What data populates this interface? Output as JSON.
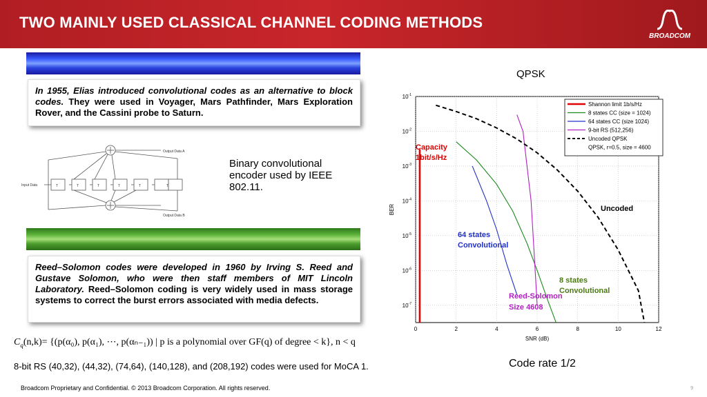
{
  "header": {
    "title": "TWO MAINLY USED CLASSICAL CHANNEL CODING METHODS",
    "logo_text": "BROADCOM"
  },
  "convolutional_box": {
    "italic_text": "In 1955, Elias introduced convolutional codes as an alternative to block codes.",
    "text": " They were used in Voyager, Mars Pathfinder, Mars Exploration Rover, and the Cassini probe to Saturn."
  },
  "encoder_diagram": {
    "output_a": "Output Data A",
    "output_b": "Output Data B",
    "input": "Input Data",
    "tap_label": "T",
    "tap_sub": "b"
  },
  "encoder_description": "Binary convolutional encoder used by IEEE 802.11.",
  "rs_box": {
    "italic_text": "Reed–Solomon codes were developed in 1960 by Irving S. Reed and Gustave Solomon, who were then staff members of MIT Lincoln Laboratory.",
    "text": " Reed–Solomon coding is very widely used in mass storage systems to correct the burst errors associated with media defects."
  },
  "formula": {
    "lhs": "C",
    "sub_q": "q",
    "args": "(n,k)",
    "body": "= {(p(α₀), p(α₁), ⋯, p(αₙ₋₁)) | p is a polynomial over GF(q) of degree < k}, n < q"
  },
  "rs_note": "8-bit RS (40,32), (44,32), (74,64), (140,128), and (208,192) codes were used for MoCA 1.",
  "qpsk_label": "QPSK",
  "code_rate": "Code rate 1/2",
  "footer": "Broadcom Proprietary and Confidential.  © 2013 Broadcom Corporation.  All rights reserved.",
  "page_number": "9",
  "chart_data": {
    "type": "line",
    "xlabel": "SNR (dB)",
    "ylabel": "BER",
    "xlim": [
      0,
      12
    ],
    "ylim_log10": [
      -7.5,
      -1
    ],
    "yscale": "log",
    "x_ticks": [
      0,
      2,
      4,
      6,
      8,
      10,
      12
    ],
    "y_ticks": [
      "10-1",
      "10-2",
      "10-3",
      "10-4",
      "10-5",
      "10-6",
      "10-7"
    ],
    "grid": true,
    "legend_position": "top-right",
    "legend": [
      "Shannon limit 1b/s/Hz",
      "8 states CC (size = 1024)",
      "64 states  CC (size 1024)",
      "9-bit RS (512,256)",
      "Uncoded QPSK",
      "QPSK, r=0.5, size = 4600"
    ],
    "series": [
      {
        "name": "Shannon limit 1b/s/Hz",
        "color": "#e00000",
        "x": [
          0.2,
          0.2
        ],
        "y": [
          0.003,
          3e-08
        ]
      },
      {
        "name": "8 states CC (size = 1024)",
        "color": "#1a8a1a",
        "x": [
          2.0,
          3.0,
          4.0,
          4.8,
          5.5,
          6.0,
          6.5,
          7.0
        ],
        "y": [
          0.005,
          0.0015,
          0.0003,
          5e-05,
          6e-06,
          1e-06,
          1.5e-07,
          2.5e-08
        ]
      },
      {
        "name": "64 states  CC (size 1024)",
        "color": "#2030c8",
        "x": [
          2.8,
          3.5,
          4.0,
          4.5,
          5.0
        ],
        "y": [
          0.001,
          0.0001,
          1.5e-05,
          1.5e-06,
          2e-07
        ]
      },
      {
        "name": "9-bit RS (512,256)",
        "color": "#b020c0",
        "x": [
          5.0,
          5.3,
          5.5,
          5.7,
          5.9,
          6.0
        ],
        "y": [
          0.03,
          0.01,
          0.001,
          0.0001,
          1e-06,
          1e-07
        ]
      },
      {
        "name": "Uncoded QPSK",
        "color": "#000000",
        "dashed": true,
        "x": [
          1,
          2,
          3,
          4,
          5,
          6,
          7,
          8,
          9,
          10,
          11,
          11.3
        ],
        "y": [
          0.056,
          0.037,
          0.023,
          0.0125,
          0.006,
          0.0024,
          0.00077,
          0.00019,
          3.4e-05,
          3.9e-06,
          2.6e-07,
          3e-08
        ]
      }
    ],
    "annotations": [
      {
        "text": "Capacity",
        "color": "#e00000"
      },
      {
        "text": "1bit/s/Hz",
        "color": "#e00000"
      },
      {
        "text": "Uncoded",
        "color": "#000000"
      },
      {
        "text": "64 states",
        "color": "#2030c8"
      },
      {
        "text": "Convolutional",
        "color": "#2030c8"
      },
      {
        "text": "8 states",
        "color": "#4a7a10"
      },
      {
        "text": "Convolutional",
        "color": "#4a7a10"
      },
      {
        "text": "Reed-Solomon",
        "color": "#b020c0"
      },
      {
        "text": "Size 4608",
        "color": "#b020c0"
      }
    ]
  }
}
